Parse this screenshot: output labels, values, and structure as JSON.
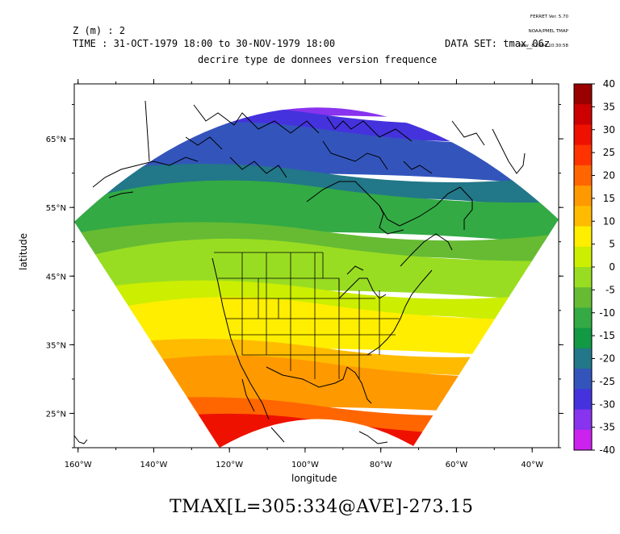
{
  "version_block": {
    "line1": "FERRET Ver. 5.70",
    "line2": "NOAA/PMEL TMAP",
    "line3": "Nov  8 2004 10:30:58"
  },
  "header": {
    "z_label": "Z (m) : 2",
    "time_label": "TIME : 31-OCT-1979 18:00 to 30-NOV-1979 18:00",
    "dataset_label": "DATA SET: tmax_06z",
    "title": "decrire type de donnees version frequence"
  },
  "footer_title": "TMAX[L=305:334@AVE]-273.15",
  "chart_data": {
    "type": "heatmap",
    "title": "decrire type de donnees version frequence",
    "xlabel": "longitude",
    "ylabel": "latitude",
    "x_ticks": [
      "160°W",
      "140°W",
      "120°W",
      "100°W",
      "80°W",
      "60°W",
      "40°W"
    ],
    "x_tick_values": [
      -160,
      -140,
      -120,
      -100,
      -80,
      -60,
      -40
    ],
    "y_ticks": [
      "65°N",
      "55°N",
      "45°N",
      "35°N",
      "25°N"
    ],
    "y_tick_values": [
      65,
      55,
      45,
      35,
      25
    ],
    "xlim": [
      -161,
      -33
    ],
    "ylim": [
      20,
      73
    ],
    "grid": false,
    "colorbar": {
      "levels": [
        "40",
        "35",
        "30",
        "25",
        "20",
        "15",
        "10",
        "5",
        "0",
        "-5",
        "-10",
        "-15",
        "-20",
        "-25",
        "-30",
        "-35",
        "-40"
      ],
      "colors": [
        "#990000",
        "#cc0000",
        "#ee1100",
        "#ff3300",
        "#ff6600",
        "#ff9900",
        "#ffbb00",
        "#ffee00",
        "#ccee00",
        "#99dd22",
        "#66bb33",
        "#33aa44",
        "#119944",
        "#227788",
        "#3355bb",
        "#4433dd",
        "#8833ee",
        "#cc22ee"
      ]
    },
    "field_bands": [
      {
        "label": "-30",
        "color": "#8833ee"
      },
      {
        "label": "-25",
        "color": "#4433dd"
      },
      {
        "label": "-20",
        "color": "#3355bb"
      },
      {
        "label": "-15",
        "color": "#227788"
      },
      {
        "label": "-10",
        "color": "#33aa44"
      },
      {
        "label": "-5",
        "color": "#66bb33"
      },
      {
        "label": "0",
        "color": "#99dd22"
      },
      {
        "label": "5",
        "color": "#ccee00"
      },
      {
        "label": "10",
        "color": "#ffee00"
      },
      {
        "label": "15",
        "color": "#ffbb00"
      },
      {
        "label": "20",
        "color": "#ff9900"
      },
      {
        "label": "25",
        "color": "#ff6600"
      },
      {
        "label": "30",
        "color": "#ee1100"
      }
    ]
  }
}
